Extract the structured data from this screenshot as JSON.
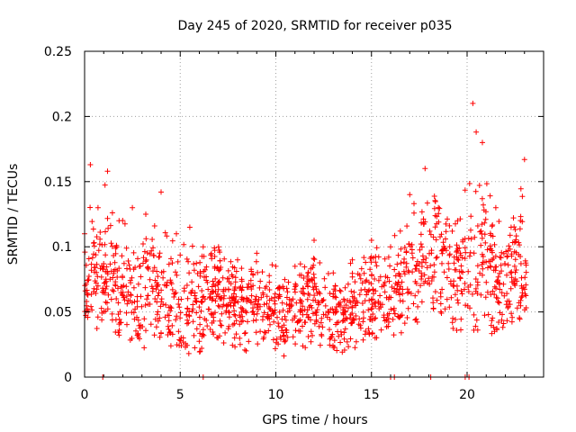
{
  "chart_data": {
    "type": "scatter",
    "title": "Day 245 of 2020, SRMTID for receiver p035",
    "xlabel": "GPS time / hours",
    "ylabel": "SRMTID / TECUs",
    "xlim": [
      0,
      24
    ],
    "ylim": [
      0,
      0.25
    ],
    "x_ticks": [
      0,
      5,
      10,
      15,
      20
    ],
    "x_tick_labels": [
      "0",
      "5",
      "10",
      "15",
      "20"
    ],
    "y_ticks": [
      0,
      0.05,
      0.1,
      0.15,
      0.2,
      0.25
    ],
    "y_tick_labels": [
      "0",
      "0.05",
      "0.1",
      "0.15",
      "0.2",
      "0.25"
    ],
    "grid": true,
    "marker": "+",
    "color": "#ff0000",
    "x_range_of_data": [
      0,
      23.1
    ],
    "zero_value_times": [
      0.95,
      6.2,
      16.0,
      16.2,
      18.1,
      19.9,
      20.1
    ],
    "series": [
      {
        "name": "SRMTID",
        "profile_hours": [
          0,
          0.3,
          0.7,
          1.2,
          1.8,
          2.5,
          3.2,
          4.0,
          4.8,
          5.5,
          6.2,
          7.0,
          8.0,
          9.0,
          10.0,
          11.0,
          12.0,
          13.0,
          14.0,
          15.0,
          16.0,
          17.0,
          17.8,
          18.5,
          19.5,
          20.3,
          20.8,
          21.5,
          22.3,
          23.0
        ],
        "profile_mean": [
          0.06,
          0.085,
          0.075,
          0.08,
          0.065,
          0.06,
          0.065,
          0.06,
          0.055,
          0.05,
          0.06,
          0.065,
          0.05,
          0.055,
          0.045,
          0.045,
          0.06,
          0.045,
          0.05,
          0.06,
          0.055,
          0.075,
          0.085,
          0.09,
          0.075,
          0.08,
          0.09,
          0.07,
          0.075,
          0.085
        ],
        "profile_max": [
          0.11,
          0.163,
          0.13,
          0.158,
          0.12,
          0.13,
          0.125,
          0.142,
          0.11,
          0.115,
          0.1,
          0.1,
          0.09,
          0.095,
          0.085,
          0.085,
          0.105,
          0.08,
          0.09,
          0.105,
          0.1,
          0.14,
          0.16,
          0.13,
          0.12,
          0.21,
          0.18,
          0.13,
          0.115,
          0.167
        ],
        "profile_min": [
          0.025,
          0.035,
          0.03,
          0.035,
          0.03,
          0.025,
          0.02,
          0.02,
          0.015,
          0.01,
          0.02,
          0.02,
          0.015,
          0.02,
          0.015,
          0.015,
          0.025,
          0.012,
          0.02,
          0.025,
          0.025,
          0.035,
          0.04,
          0.025,
          0.03,
          0.03,
          0.04,
          0.03,
          0.035,
          0.04
        ]
      }
    ]
  }
}
